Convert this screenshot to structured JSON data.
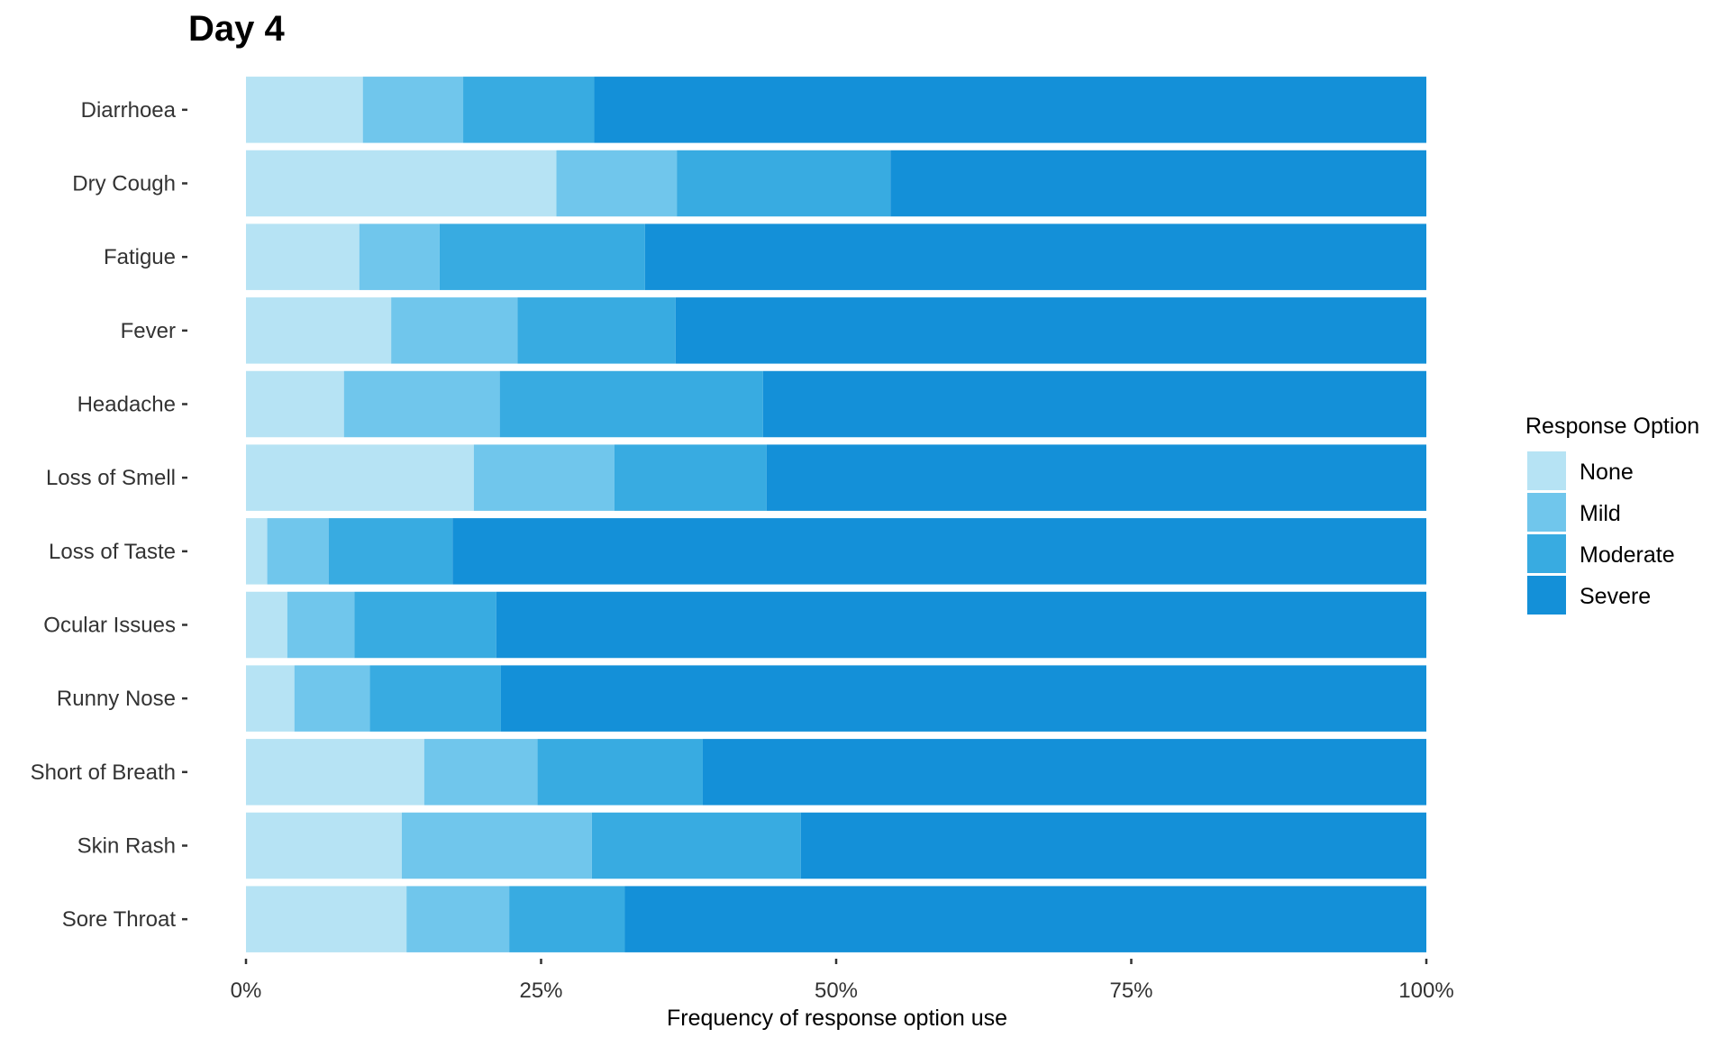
{
  "chart_data": {
    "type": "bar",
    "orientation": "horizontal",
    "stacked": true,
    "normalized": true,
    "title": "Day 4",
    "xlabel": "Frequency of response option use",
    "ylabel": "",
    "xlim": [
      0,
      100
    ],
    "x_ticks": [
      "0%",
      "25%",
      "50%",
      "75%",
      "100%"
    ],
    "grid": false,
    "legend": {
      "title": "Response Option",
      "position": "right"
    },
    "categories": [
      "Diarrhoea",
      "Dry Cough",
      "Fatigue",
      "Fever",
      "Headache",
      "Loss of Smell",
      "Loss of Taste",
      "Ocular Issues",
      "Runny Nose",
      "Short of Breath",
      "Skin Rash",
      "Sore Throat"
    ],
    "series": [
      {
        "name": "None",
        "color": "#b6e3f4",
        "values": [
          9.9,
          26.3,
          9.6,
          12.3,
          8.3,
          19.3,
          1.8,
          3.5,
          4.1,
          15.1,
          13.2,
          13.6
        ]
      },
      {
        "name": "Mild",
        "color": "#70c6ec",
        "values": [
          8.5,
          10.2,
          6.8,
          10.7,
          13.2,
          11.9,
          5.2,
          5.7,
          6.4,
          9.6,
          16.1,
          8.7
        ]
      },
      {
        "name": "Moderate",
        "color": "#38abe1",
        "values": [
          11.1,
          18.1,
          17.4,
          13.4,
          22.3,
          12.9,
          10.5,
          12.0,
          11.1,
          14.0,
          17.7,
          9.8
        ]
      },
      {
        "name": "Severe",
        "color": "#1490d8",
        "values": [
          70.5,
          45.4,
          66.2,
          63.6,
          56.2,
          55.9,
          82.5,
          78.8,
          78.4,
          61.3,
          53.0,
          67.9
        ]
      }
    ]
  }
}
